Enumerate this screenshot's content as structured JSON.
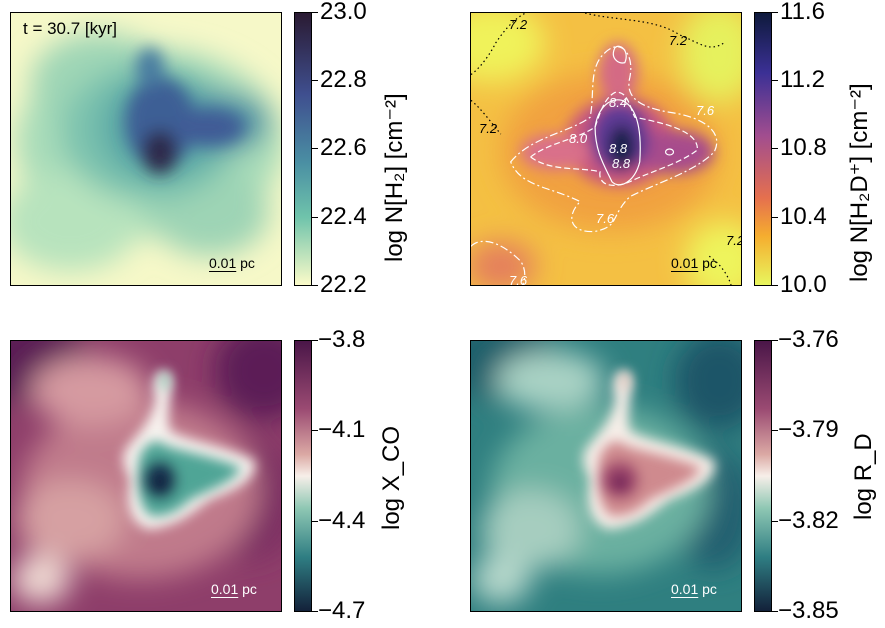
{
  "panel_h2": {
    "time_label": "t = 30.7 [kyr]",
    "scalebar": "0.01 pc",
    "colorbar": {
      "ticks": [
        "23.0",
        "22.8",
        "22.6",
        "22.4",
        "22.2"
      ],
      "label": "log N[H₂] [cm⁻²]",
      "colors": [
        "#2a1a32",
        "#3f4f8f",
        "#4a8fa3",
        "#6fc3ab",
        "#fbfbc9"
      ]
    }
  },
  "panel_h2d": {
    "scalebar": "0.01 pc",
    "contour_labels": [
      "7.2",
      "7.2",
      "7.2",
      "7.2",
      "8.4",
      "7.6",
      "8.0",
      "8.8",
      "8.8",
      "7.6",
      "7.6"
    ],
    "colorbar": {
      "ticks": [
        "11.6",
        "11.2",
        "10.8",
        "10.4",
        "10.0"
      ],
      "label": "log N[H₂D⁺] [cm⁻²]",
      "colors": [
        "#0e1a3c",
        "#5a3a96",
        "#c25a84",
        "#f1963d",
        "#e8f65e"
      ]
    }
  },
  "panel_xco": {
    "scalebar": "0.01 pc",
    "colorbar": {
      "ticks": [
        "−3.8",
        "−4.1",
        "−4.4",
        "−4.7"
      ],
      "label": "log X_CO",
      "colors": [
        "#4a1648",
        "#c07688",
        "#f7efe9",
        "#3c9a8a",
        "#13213a"
      ]
    }
  },
  "panel_rd": {
    "scalebar": "0.01 pc",
    "colorbar": {
      "ticks": [
        "−3.76",
        "−3.79",
        "−3.82",
        "−3.85"
      ],
      "label": "log R_D",
      "colors": [
        "#4a1648",
        "#c07688",
        "#f7efe9",
        "#3c9a8a",
        "#13213a"
      ]
    }
  }
}
